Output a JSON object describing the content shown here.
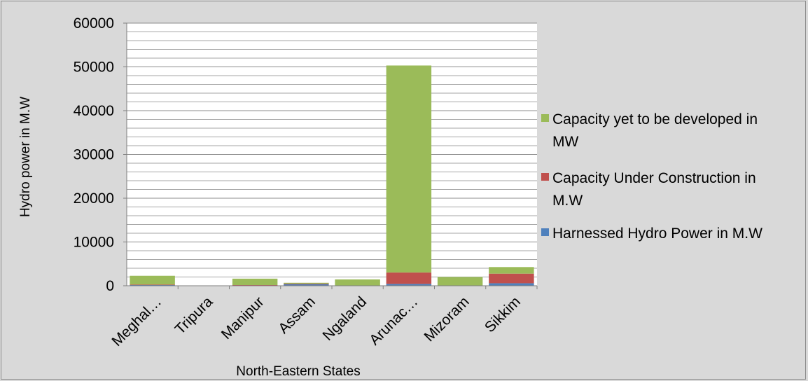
{
  "chart_data": {
    "type": "bar",
    "stacked": true,
    "xlabel": "North-Eastern States",
    "ylabel": "Hydro power in M.W",
    "ylim": [
      0,
      60000
    ],
    "yticks": [
      0,
      10000,
      20000,
      30000,
      40000,
      50000,
      60000
    ],
    "ytick_labels": [
      "0",
      "10000",
      "20000",
      "30000",
      "40000",
      "50000",
      "60000"
    ],
    "minor_gridlines": true,
    "legend_position": "right",
    "categories": [
      "Meghal…",
      "Tripura",
      "Manipur",
      "Assam",
      "Ngaland",
      "Arunac…",
      "Mizoram",
      "Sikkim"
    ],
    "series": [
      {
        "name": "Harnessed Hydro Power in M.W",
        "color": "#4f81bd",
        "values": [
          160,
          0,
          100,
          375,
          75,
          420,
          0,
          570
        ]
      },
      {
        "name": "Capacity Under Construction in M.W",
        "color": "#c0504d",
        "values": [
          120,
          0,
          60,
          100,
          0,
          2600,
          60,
          2200
        ]
      },
      {
        "name": "Capacity yet to be developed in MW",
        "color": "#9bbb59",
        "values": [
          2000,
          0,
          1460,
          200,
          1370,
          47300,
          1940,
          1500
        ]
      }
    ],
    "legend_order": [
      2,
      1,
      0
    ],
    "legend_lines": [
      [
        "Capacity yet to be developed in",
        "MW"
      ],
      [
        "Capacity Under Construction in",
        "M.W"
      ],
      [
        "Harnessed Hydro Power in M.W"
      ]
    ]
  }
}
